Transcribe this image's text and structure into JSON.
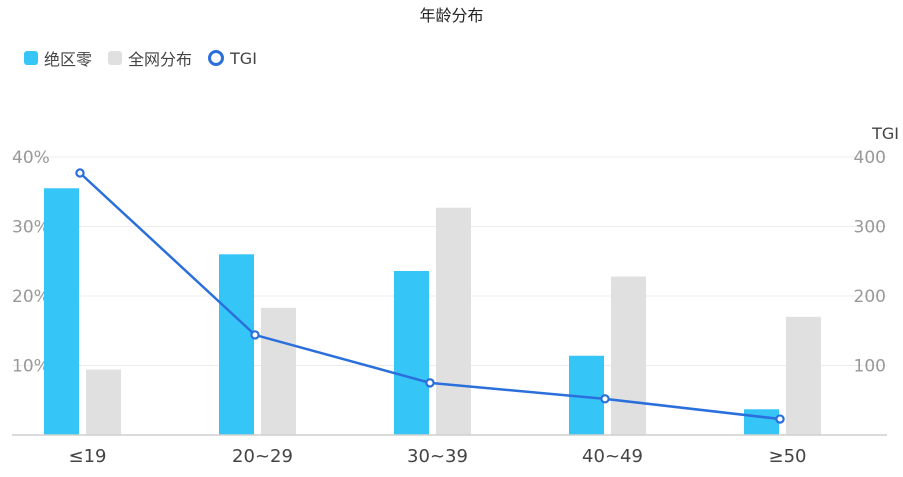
{
  "chart_data": {
    "type": "bar",
    "title": "年龄分布",
    "categories": [
      "≤19",
      "20~29",
      "30~39",
      "40~49",
      "≥50"
    ],
    "series": [
      {
        "name": "绝区零",
        "type": "bar",
        "axis": "left",
        "color": "#36c5f7",
        "values": [
          35.5,
          26.0,
          23.6,
          11.4,
          3.7
        ]
      },
      {
        "name": "全网分布",
        "type": "bar",
        "axis": "left",
        "color": "#e0e0e0",
        "values": [
          9.4,
          18.3,
          32.7,
          22.8,
          17.0
        ]
      },
      {
        "name": "TGI",
        "type": "line",
        "axis": "right",
        "color": "#2a6fdb",
        "values": [
          377,
          144,
          75,
          52,
          23
        ]
      }
    ],
    "y_left": {
      "min": 0,
      "max": 40,
      "ticks": [
        10,
        20,
        30,
        40
      ],
      "tick_labels": [
        "10%",
        "20%",
        "30%",
        "40%"
      ]
    },
    "y_right": {
      "label": "TGI",
      "min": 0,
      "max": 400,
      "ticks": [
        100,
        200,
        300,
        400
      ],
      "tick_labels": [
        "100",
        "200",
        "300",
        "400"
      ]
    },
    "grid": true,
    "legend": "top-left"
  }
}
